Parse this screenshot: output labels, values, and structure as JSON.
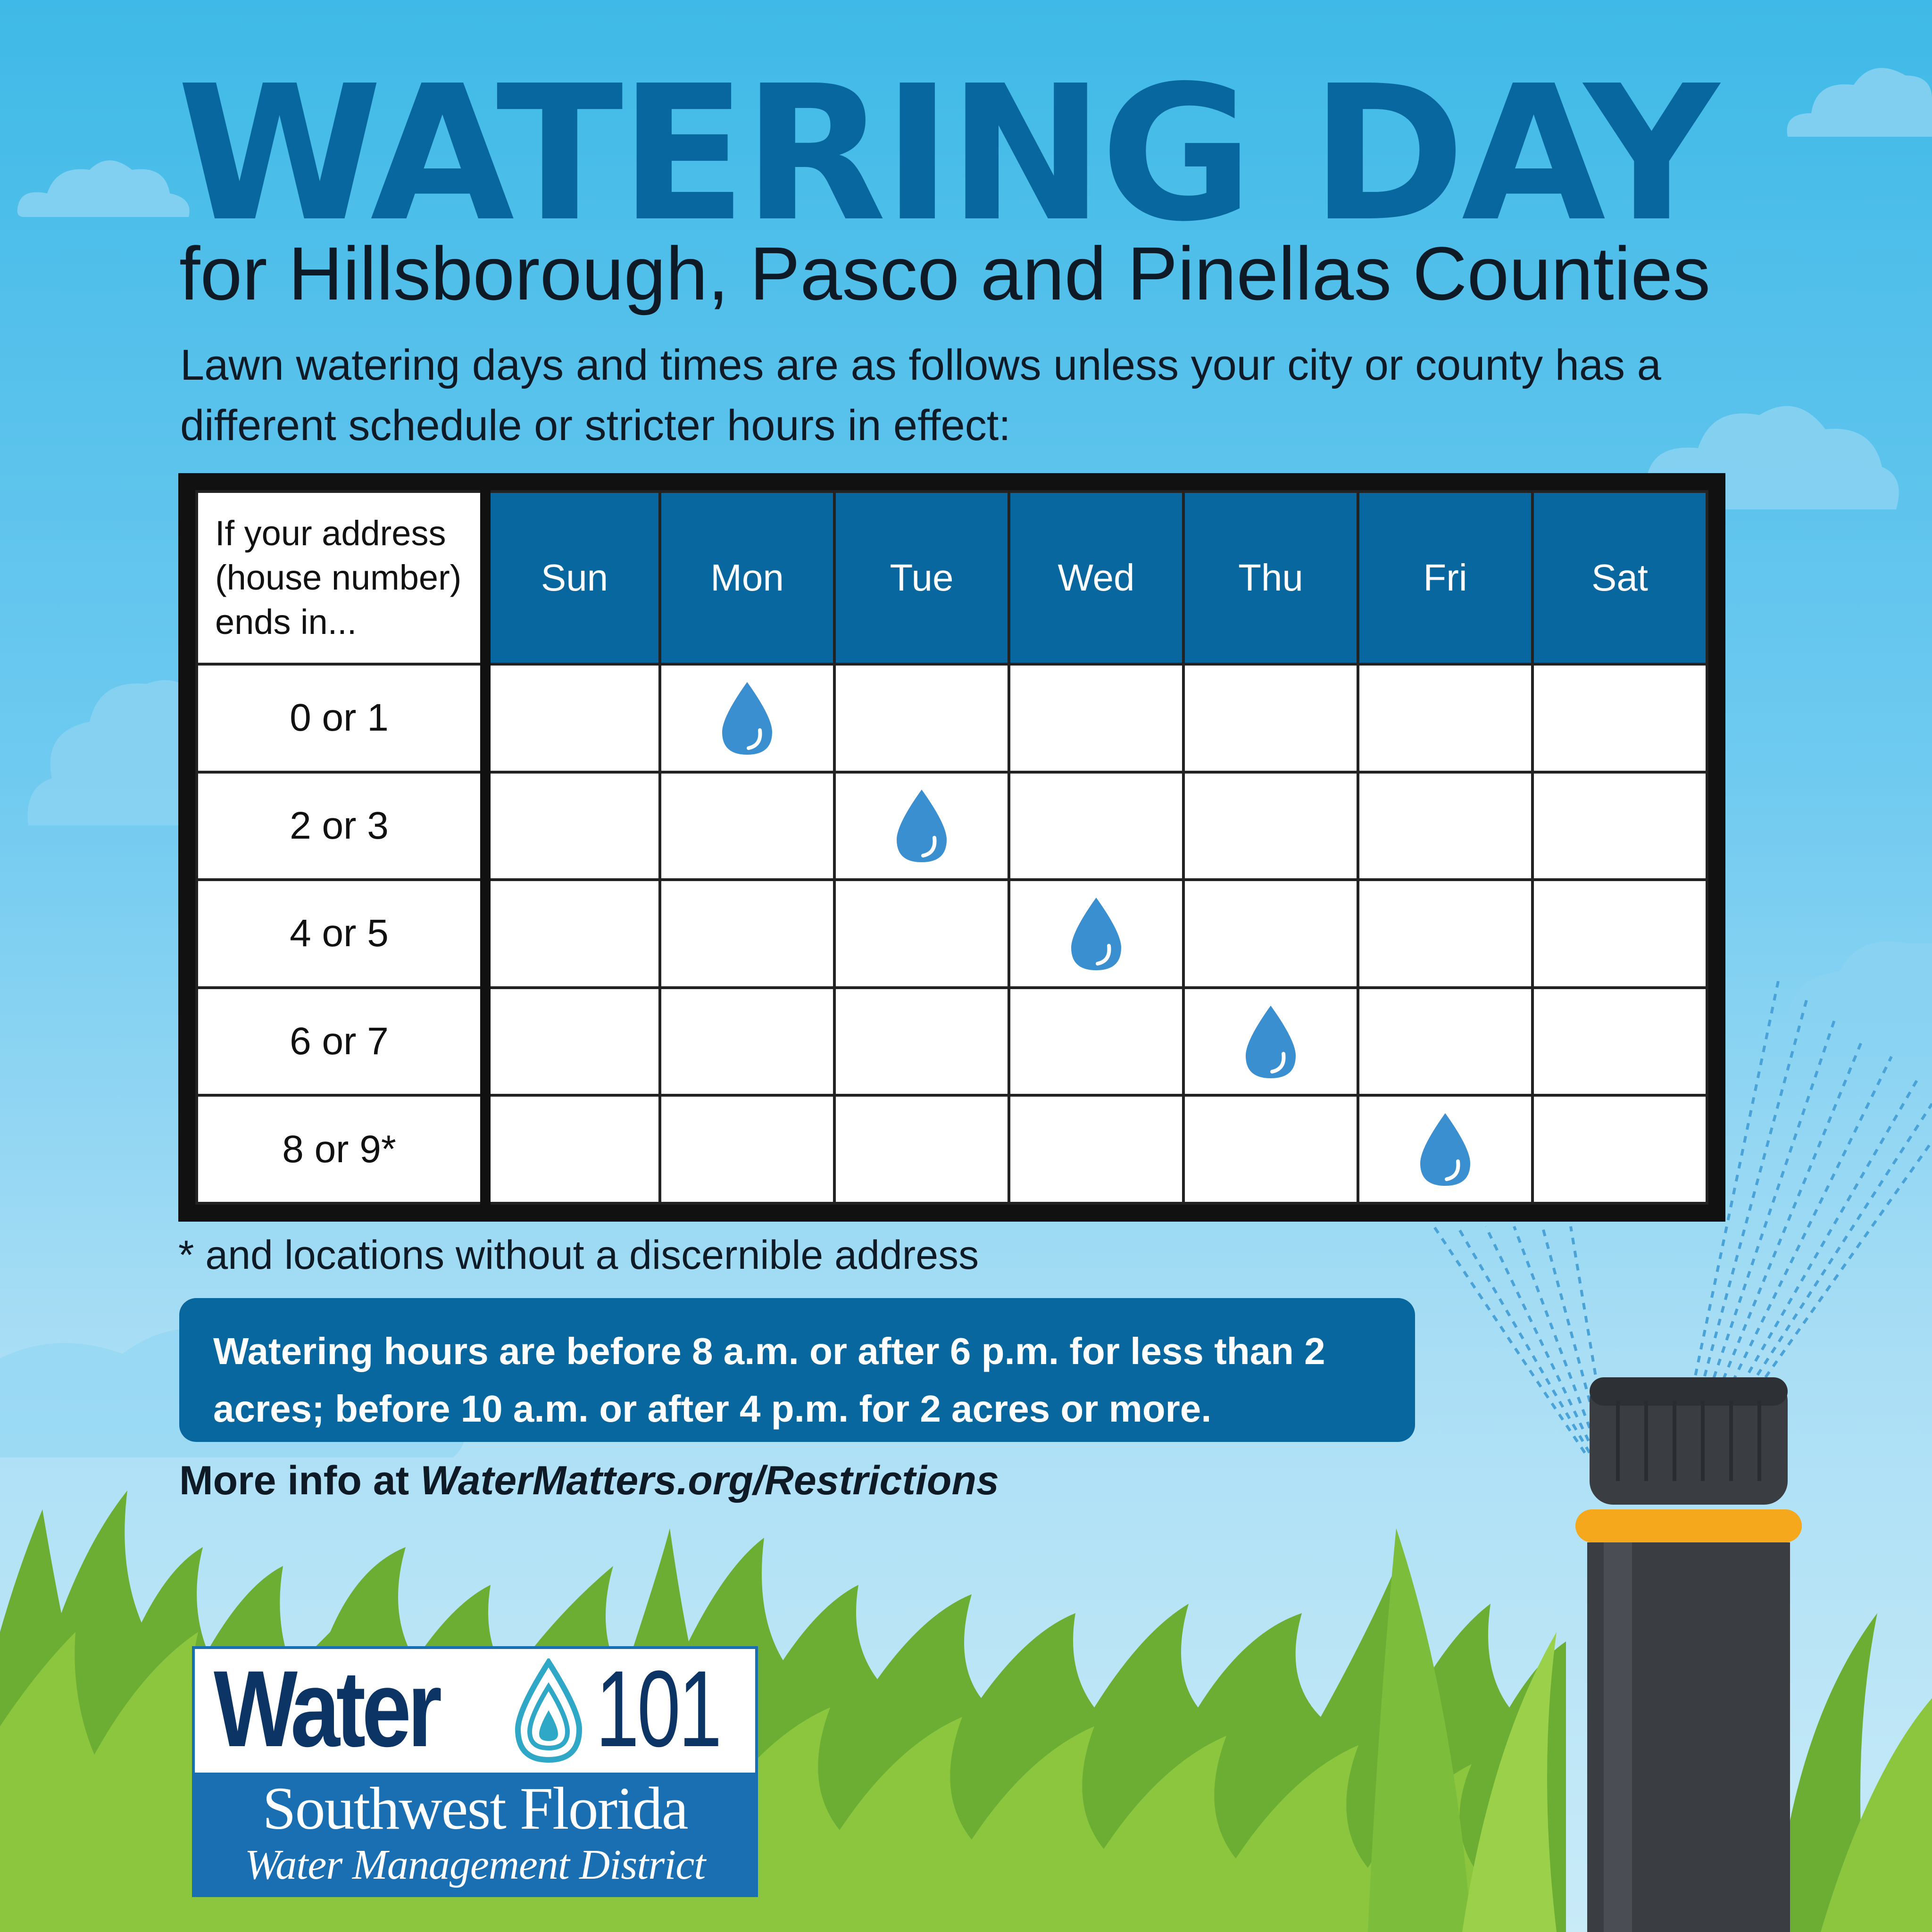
{
  "header": {
    "title": "WATERING DAY",
    "subtitle": "for Hillsborough, Pasco and Pinellas Counties",
    "intro": "Lawn watering days and times are as follows unless your city or county has a different schedule or stricter hours in effect:"
  },
  "schedule": {
    "corner_label": "If your address (house number) ends in...",
    "days": [
      "Sun",
      "Mon",
      "Tue",
      "Wed",
      "Thu",
      "Fri",
      "Sat"
    ],
    "rows": [
      {
        "label": "0 or 1",
        "watering_day": "Mon"
      },
      {
        "label": "2 or 3",
        "watering_day": "Tue"
      },
      {
        "label": "4 or 5",
        "watering_day": "Wed"
      },
      {
        "label": "6 or 7",
        "watering_day": "Thu"
      },
      {
        "label": "8 or 9*",
        "watering_day": "Fri"
      }
    ],
    "marker_icon": "water-drop-icon"
  },
  "footnote": "* and locations without a discernible address",
  "hours_notice": "Watering hours are before 8 a.m. or after 6 p.m. for less than 2 acres; before 10 a.m. or after 4 p.m. for 2 acres or more.",
  "more_info": {
    "prefix": "More info at",
    "url": "WaterMatters.org/Restrictions"
  },
  "logo": {
    "word": "Water",
    "number": "101",
    "organization": "Southwest Florida",
    "organization_sub": "Water Management District"
  },
  "colors": {
    "brand_blue": "#08679f",
    "drop_blue": "#3a8fd0",
    "grass_green": "#7dbd3c",
    "sprinkler_ring": "#f5a81c"
  }
}
